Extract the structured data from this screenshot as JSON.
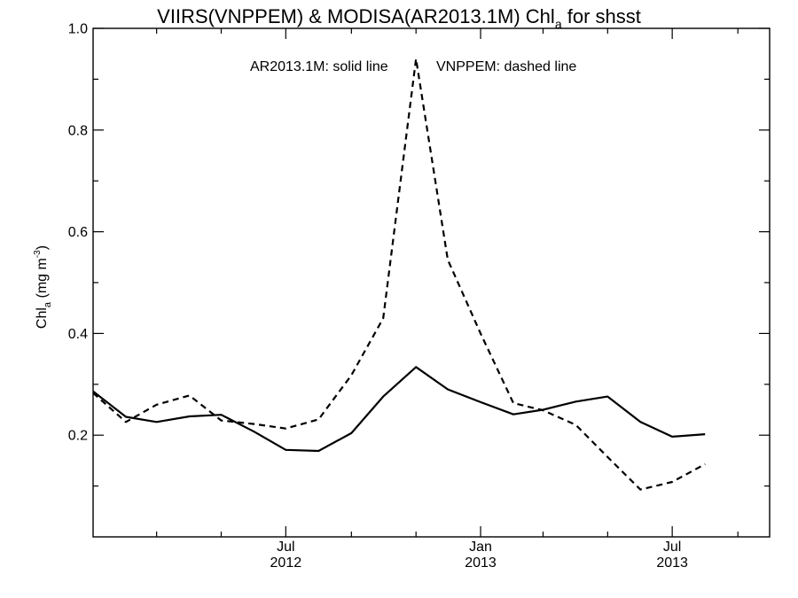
{
  "chart_data": {
    "type": "line",
    "title": {
      "main": "VIIRS(VNPPEM) & MODISA(AR2013.1M)  Chl",
      "subscript": "a",
      "tail": " for shsst"
    },
    "ylabel": {
      "main": "Chl",
      "subscript": "a",
      "units": " (mg m",
      "superscript": "-3",
      "close": ")"
    },
    "annotations": {
      "solid": "AR2013.1M: solid line",
      "dashed": "VNPPEM: dashed line"
    },
    "ylim": [
      0.0,
      1.0
    ],
    "xlim": [
      "2012-01-01",
      "2013-10-01"
    ],
    "y_ticks": [
      {
        "value": 0.2,
        "label": "0.2"
      },
      {
        "value": 0.4,
        "label": "0.4"
      },
      {
        "value": 0.6,
        "label": "0.6"
      },
      {
        "value": 0.8,
        "label": "0.8"
      },
      {
        "value": 1.0,
        "label": "1.0"
      }
    ],
    "y_minor_ticks": [
      0.1,
      0.3,
      0.5,
      0.7,
      0.9
    ],
    "x_major_ticks": [
      {
        "date": "2012-07-01",
        "label1": "Jul",
        "label2": "2012"
      },
      {
        "date": "2013-01-01",
        "label1": "Jan",
        "label2": "2013"
      },
      {
        "date": "2013-07-01",
        "label1": "Jul",
        "label2": "2013"
      }
    ],
    "x_minor_ticks": [
      "2012-03-01",
      "2012-05-01",
      "2012-09-01",
      "2012-11-01",
      "2013-03-01",
      "2013-05-01",
      "2013-09-01"
    ],
    "x": [
      "2012-01-01",
      "2012-02-01",
      "2012-03-01",
      "2012-04-01",
      "2012-05-01",
      "2012-06-01",
      "2012-07-01",
      "2012-08-01",
      "2012-09-01",
      "2012-10-01",
      "2012-11-01",
      "2012-12-01",
      "2013-01-01",
      "2013-02-01",
      "2013-03-01",
      "2013-04-01",
      "2013-05-01",
      "2013-06-01",
      "2013-07-01",
      "2013-08-01",
      "2013-09-01",
      "2013-10-01"
    ],
    "series": [
      {
        "style": "solid",
        "values": [
          0.286,
          0.236,
          0.226,
          0.237,
          0.24,
          0.207,
          0.171,
          0.169,
          0.204,
          0.276,
          0.334,
          0.29,
          0.265,
          0.241,
          0.25,
          0.266,
          0.276,
          0.226,
          0.197,
          0.202,
          null,
          null
        ]
      },
      {
        "style": "dashed",
        "values": [
          0.283,
          0.226,
          0.26,
          0.278,
          0.229,
          0.222,
          0.213,
          0.231,
          0.318,
          0.43,
          0.94,
          0.545,
          0.4,
          0.263,
          0.249,
          0.22,
          0.157,
          0.093,
          0.108,
          0.143,
          null,
          null
        ]
      }
    ]
  }
}
